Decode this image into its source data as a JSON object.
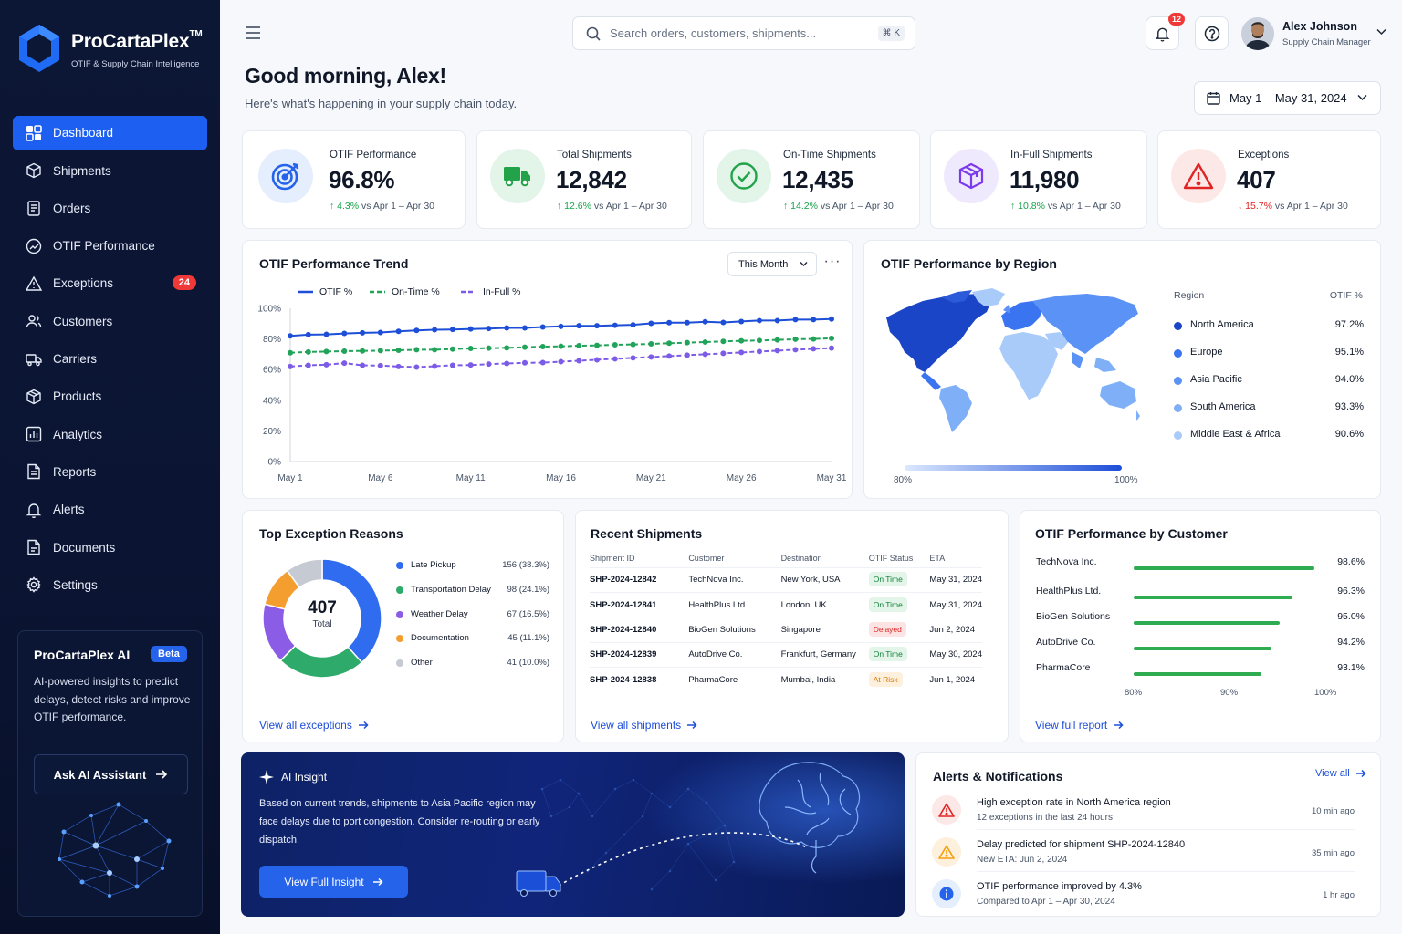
{
  "app": {
    "name": "ProCartaPlex",
    "trademark": "TM",
    "tagline": "OTIF & Supply Chain Intelligence"
  },
  "sidebar": {
    "items": [
      {
        "label": "Dashboard",
        "icon": "dashboard-icon",
        "active": true
      },
      {
        "label": "Shipments",
        "icon": "shipments-icon"
      },
      {
        "label": "Orders",
        "icon": "orders-icon"
      },
      {
        "label": "OTIF Performance",
        "icon": "otif-icon"
      },
      {
        "label": "Exceptions",
        "icon": "warning-icon",
        "badge": "24"
      },
      {
        "label": "Customers",
        "icon": "customers-icon"
      },
      {
        "label": "Carriers",
        "icon": "truck-icon"
      },
      {
        "label": "Products",
        "icon": "box-icon"
      },
      {
        "label": "Analytics",
        "icon": "analytics-icon"
      },
      {
        "label": "Reports",
        "icon": "reports-icon"
      },
      {
        "label": "Alerts",
        "icon": "bell-icon"
      },
      {
        "label": "Documents",
        "icon": "documents-icon"
      },
      {
        "label": "Settings",
        "icon": "gear-icon"
      }
    ],
    "ai_card": {
      "title": "ProCartaPlex AI",
      "badge": "Beta",
      "description": "AI-powered insights to predict delays, detect risks and improve OTIF performance.",
      "button": "Ask AI Assistant"
    }
  },
  "header": {
    "search_placeholder": "Search orders, customers, shipments...",
    "shortcut": "⌘ K",
    "notifications_count": "12",
    "user": {
      "name": "Alex Johnson",
      "role": "Supply Chain Manager"
    }
  },
  "greeting": {
    "title": "Good morning, Alex!",
    "subtitle": "Here's what's happening in your supply chain today."
  },
  "date_range": "May 1 – May 31, 2024",
  "kpis": [
    {
      "label": "OTIF Performance",
      "value": "96.8%",
      "delta": "4.3%",
      "direction": "up",
      "compare": "vs Apr 1 – Apr 30",
      "icon": "target-icon",
      "color": "#2563eb"
    },
    {
      "label": "Total Shipments",
      "value": "12,842",
      "delta": "12.6%",
      "direction": "up",
      "compare": "vs Apr 1 – Apr 30",
      "icon": "truck-icon",
      "color": "#22a34a"
    },
    {
      "label": "On-Time Shipments",
      "value": "12,435",
      "delta": "14.2%",
      "direction": "up",
      "compare": "vs Apr 1 – Apr 30",
      "icon": "check-circle-icon",
      "color": "#22a34a"
    },
    {
      "label": "In-Full Shipments",
      "value": "11,980",
      "delta": "10.8%",
      "direction": "up",
      "compare": "vs Apr 1 – Apr 30",
      "icon": "box-icon",
      "color": "#7c3aed"
    },
    {
      "label": "Exceptions",
      "value": "407",
      "delta": "15.7%",
      "direction": "down",
      "compare": "vs Apr 1 – Apr 30",
      "icon": "warning-icon",
      "color": "#e02424"
    }
  ],
  "trend": {
    "title": "OTIF Performance Trend",
    "period": "This Month",
    "more": "···"
  },
  "chart_data": {
    "type": "line",
    "title": "OTIF Performance Trend",
    "x_tick_labels": [
      "May 1",
      "May 6",
      "May 11",
      "May 16",
      "May 21",
      "May 26",
      "May 31"
    ],
    "y_tick_labels": [
      "100%",
      "80%",
      "60%",
      "40%",
      "20%",
      "0%"
    ],
    "ylim": [
      0,
      100
    ],
    "x": [
      1,
      2,
      3,
      4,
      5,
      6,
      7,
      8,
      9,
      10,
      11,
      12,
      13,
      14,
      15,
      16,
      17,
      18,
      19,
      20,
      21,
      22,
      23,
      24,
      25,
      26,
      27,
      28,
      29,
      30,
      31
    ],
    "series": [
      {
        "name": "OTIF %",
        "color": "#1d4ed8",
        "dash": "solid",
        "values": [
          82.0,
          82.8,
          83.0,
          83.6,
          84.0,
          84.2,
          85.0,
          85.6,
          86.0,
          86.2,
          86.5,
          86.8,
          87.2,
          87.2,
          87.8,
          88.2,
          88.6,
          88.6,
          88.9,
          89.2,
          90.2,
          90.6,
          90.6,
          91.2,
          90.8,
          91.4,
          92.0,
          92.0,
          92.6,
          92.6,
          93.0
        ]
      },
      {
        "name": "On-Time %",
        "color": "#22a35a",
        "dash": "dashed",
        "values": [
          71.0,
          71.5,
          71.8,
          72.0,
          72.2,
          72.4,
          72.6,
          73.0,
          73.0,
          73.4,
          73.8,
          74.0,
          74.2,
          74.6,
          75.0,
          75.2,
          75.6,
          75.8,
          76.2,
          76.4,
          76.8,
          77.2,
          77.6,
          78.0,
          78.4,
          78.8,
          79.0,
          79.4,
          79.8,
          80.0,
          80.4
        ]
      },
      {
        "name": "In-Full %",
        "color": "#7c5ce6",
        "dash": "dashed",
        "values": [
          62.0,
          62.8,
          63.2,
          64.2,
          62.8,
          62.6,
          62.0,
          61.6,
          62.2,
          62.8,
          63.0,
          63.6,
          64.0,
          64.4,
          64.6,
          65.2,
          65.8,
          66.4,
          67.0,
          67.6,
          68.2,
          68.8,
          69.4,
          70.0,
          70.6,
          71.2,
          71.8,
          72.4,
          73.0,
          73.6,
          74.0
        ]
      }
    ],
    "legend_position": "top-left",
    "grid": "none"
  },
  "region": {
    "title": "OTIF Performance by Region",
    "col_region": "Region",
    "col_otif": "OTIF %",
    "rows": [
      {
        "name": "North America",
        "pct": "97.2%",
        "color": "#1a45c7"
      },
      {
        "name": "Europe",
        "pct": "95.1%",
        "color": "#3b74f0"
      },
      {
        "name": "Asia Pacific",
        "pct": "94.0%",
        "color": "#5b92f5"
      },
      {
        "name": "South America",
        "pct": "93.3%",
        "color": "#7fb0f7"
      },
      {
        "name": "Middle East & Africa",
        "pct": "90.6%",
        "color": "#a9cbfa"
      }
    ],
    "scale_min": "80%",
    "scale_max": "100%"
  },
  "exceptions": {
    "title": "Top Exception Reasons",
    "total": "407",
    "total_label": "Total",
    "items": [
      {
        "name": "Late Pickup",
        "value": 156,
        "display": "156 (38.3%)",
        "color": "#2f6cf0"
      },
      {
        "name": "Transportation Delay",
        "value": 98,
        "display": "98 (24.1%)",
        "color": "#2eaa6a"
      },
      {
        "name": "Weather Delay",
        "value": 67,
        "display": "67 (16.5%)",
        "color": "#8b5ce6"
      },
      {
        "name": "Documentation",
        "value": 45,
        "display": "45 (11.1%)",
        "color": "#f59e30"
      },
      {
        "name": "Other",
        "value": 41,
        "display": "41 (10.0%)",
        "color": "#c5cad3"
      }
    ],
    "link": "View all exceptions"
  },
  "shipments": {
    "title": "Recent Shipments",
    "columns": [
      "Shipment ID",
      "Customer",
      "Destination",
      "OTIF Status",
      "ETA"
    ],
    "rows": [
      {
        "id": "SHP-2024-12842",
        "customer": "TechNova Inc.",
        "dest": "New York, USA",
        "status": "On Time",
        "status_type": "on",
        "eta": "May 31, 2024"
      },
      {
        "id": "SHP-2024-12841",
        "customer": "HealthPlus Ltd.",
        "dest": "London, UK",
        "status": "On Time",
        "status_type": "on",
        "eta": "May 31, 2024"
      },
      {
        "id": "SHP-2024-12840",
        "customer": "BioGen Solutions",
        "dest": "Singapore",
        "status": "Delayed",
        "status_type": "del",
        "eta": "Jun 2, 2024"
      },
      {
        "id": "SHP-2024-12839",
        "customer": "AutoDrive Co.",
        "dest": "Frankfurt, Germany",
        "status": "On Time",
        "status_type": "on",
        "eta": "May 30, 2024"
      },
      {
        "id": "SHP-2024-12838",
        "customer": "PharmaCore",
        "dest": "Mumbai, India",
        "status": "At Risk",
        "status_type": "risk",
        "eta": "Jun 1, 2024"
      }
    ],
    "link": "View all shipments"
  },
  "customers": {
    "title": "OTIF Performance by Customer",
    "rows": [
      {
        "name": "TechNova Inc.",
        "pct": "98.6%",
        "value": 98.6
      },
      {
        "name": "HealthPlus Ltd.",
        "pct": "96.3%",
        "value": 96.3
      },
      {
        "name": "BioGen Solutions",
        "pct": "95.0%",
        "value": 95.0
      },
      {
        "name": "AutoDrive Co.",
        "pct": "94.2%",
        "value": 94.2
      },
      {
        "name": "PharmaCore",
        "pct": "93.1%",
        "value": 93.1
      }
    ],
    "axis": [
      "80%",
      "90%",
      "100%"
    ],
    "link": "View full report"
  },
  "insight": {
    "tag": "AI Insight",
    "text": "Based on current trends, shipments to Asia Pacific region may face delays due to port congestion. Consider re-routing or early dispatch.",
    "button": "View Full Insight"
  },
  "alerts": {
    "title": "Alerts & Notifications",
    "view_all": "View all",
    "items": [
      {
        "title": "High exception rate in North America region",
        "sub": "12 exceptions in the last 24 hours",
        "time": "10 min ago",
        "icon": "warning-icon",
        "color": "#e02424"
      },
      {
        "title": "Delay predicted for shipment SHP-2024-12840",
        "sub": "New ETA: Jun 2, 2024",
        "time": "35 min ago",
        "icon": "warning-icon",
        "color": "#f59e0b"
      },
      {
        "title": "OTIF performance improved by 4.3%",
        "sub": "Compared to Apr 1 – Apr 30, 2024",
        "time": "1 hr ago",
        "icon": "info-icon",
        "color": "#2563eb"
      }
    ]
  }
}
